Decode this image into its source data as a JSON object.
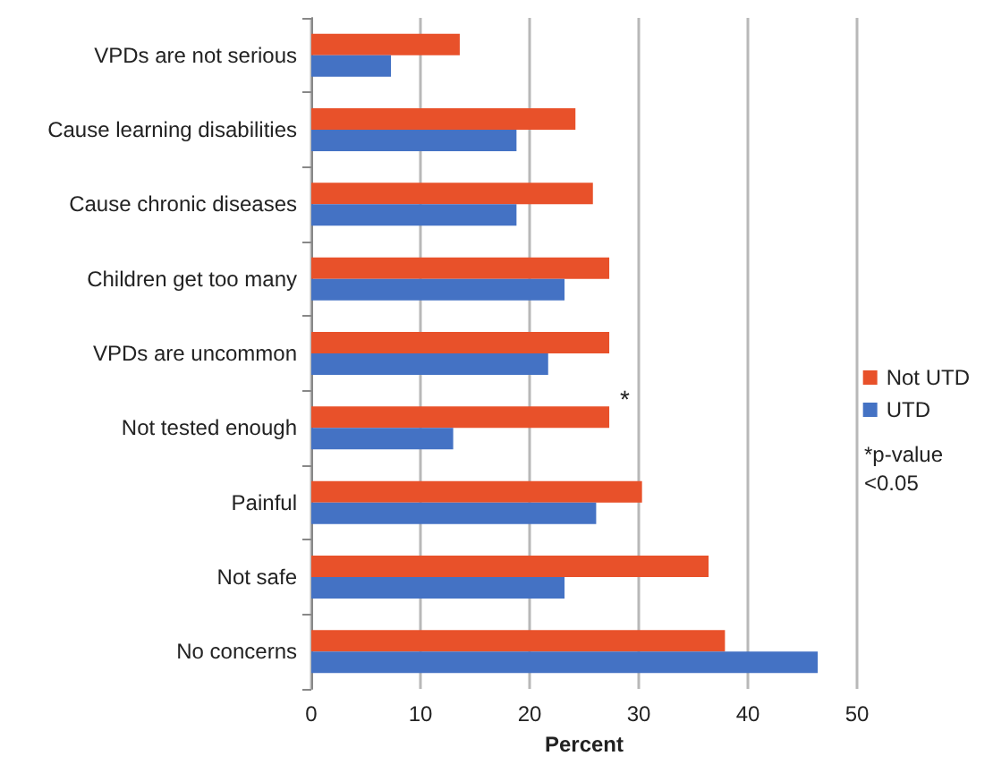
{
  "chart_data": {
    "type": "bar",
    "orientation": "horizontal",
    "xlabel": "Percent",
    "categories": [
      "VPDs are not serious",
      "Cause learning disabilities",
      "Cause chronic diseases",
      "Children get too many",
      "VPDs are uncommon",
      "Not tested enough",
      "Painful",
      "Not safe",
      "No concerns"
    ],
    "series": [
      {
        "name": "Not UTD",
        "color": "#e8512a",
        "values": [
          13.6,
          24.2,
          25.8,
          27.3,
          27.3,
          27.3,
          30.3,
          36.4,
          37.9
        ]
      },
      {
        "name": "UTD",
        "color": "#4472c4",
        "values": [
          7.3,
          18.8,
          18.8,
          23.2,
          21.7,
          13.0,
          26.1,
          23.2,
          46.4
        ]
      }
    ],
    "xlim": [
      0,
      50
    ],
    "xticks": [
      0,
      10,
      20,
      30,
      40,
      50
    ],
    "grid": "x",
    "legend": "right",
    "annotations": [
      {
        "text": "*",
        "x": 27.3,
        "y": "Not tested enough"
      },
      "*p-value <0.05"
    ]
  }
}
